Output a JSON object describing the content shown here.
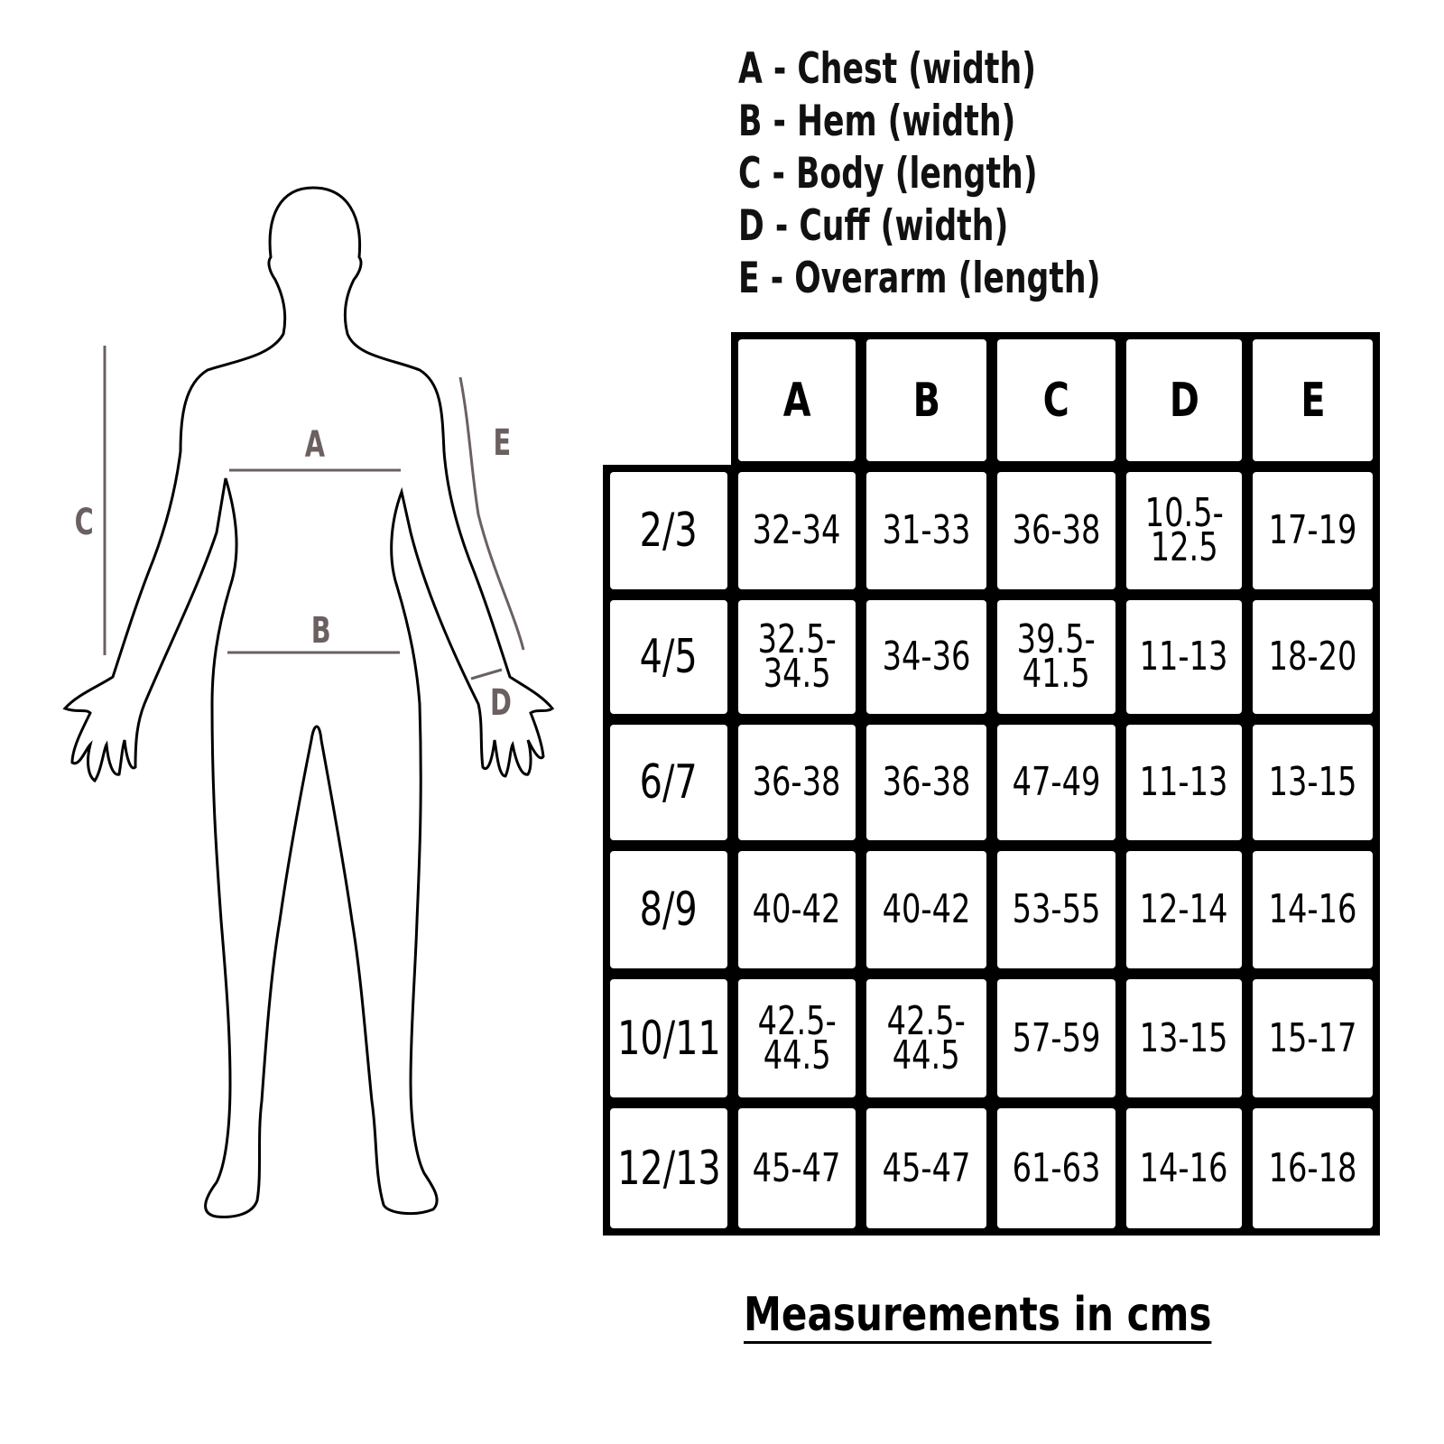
{
  "legend": [
    "A - Chest (width)",
    "B - Hem (width)",
    "C - Body (length)",
    "D - Cuff (width)",
    "E - Overarm (length)"
  ],
  "figure_labels": {
    "A": "A",
    "B": "B",
    "C": "C",
    "D": "D",
    "E": "E"
  },
  "colors": {
    "measure_lines": "#6b6060",
    "grid": "#000000"
  },
  "table": {
    "columns": [
      "A",
      "B",
      "C",
      "D",
      "E"
    ],
    "rows": [
      {
        "size": "2/3",
        "values": [
          "32-34",
          "31-33",
          "36-38",
          "10.5-\n12.5",
          "17-19"
        ]
      },
      {
        "size": "4/5",
        "values": [
          "32.5-\n34.5",
          "34-36",
          "39.5-\n41.5",
          "11-13",
          "18-20"
        ]
      },
      {
        "size": "6/7",
        "values": [
          "36-38",
          "36-38",
          "47-49",
          "11-13",
          "13-15"
        ]
      },
      {
        "size": "8/9",
        "values": [
          "40-42",
          "40-42",
          "53-55",
          "12-14",
          "14-16"
        ]
      },
      {
        "size": "10/11",
        "values": [
          "42.5-\n44.5",
          "42.5-\n44.5",
          "57-59",
          "13-15",
          "15-17"
        ]
      },
      {
        "size": "12/13",
        "values": [
          "45-47",
          "45-47",
          "61-63",
          "14-16",
          "16-18"
        ]
      }
    ]
  },
  "footer": "Measurements in cms"
}
